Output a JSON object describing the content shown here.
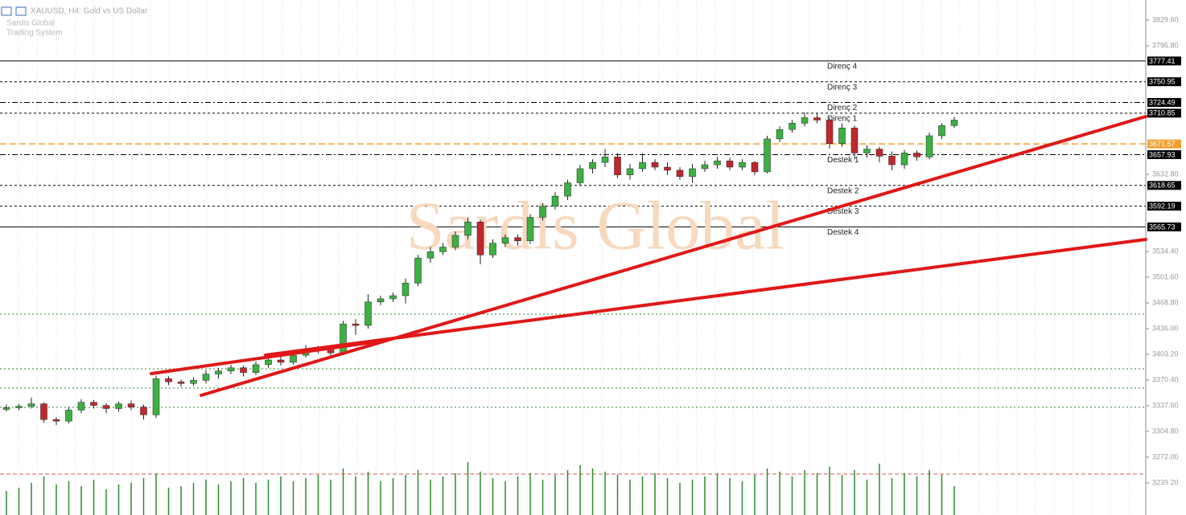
{
  "chart_data": {
    "type": "candlestick",
    "title": "XAUUSD, H4: Gold vs US Dollar",
    "subtitle": [
      "Sardis Global",
      "Trading System"
    ],
    "watermark": "Sardis Global",
    "up_color": "#3cb043",
    "down_color": "#c0282d",
    "volume_color": "#2e8b2e",
    "ylim": [
      3198.2,
      3855.2
    ],
    "yticks": [
      {
        "value": 3829.6,
        "label": "3829.60"
      },
      {
        "value": 3796.8,
        "label": "3796.80"
      },
      {
        "value": 3632.8,
        "label": "3632.80"
      },
      {
        "value": 3534.4,
        "label": "3534.40"
      },
      {
        "value": 3501.6,
        "label": "3501.60"
      },
      {
        "value": 3468.8,
        "label": "3468.80"
      },
      {
        "value": 3436,
        "label": "3436.00"
      },
      {
        "value": 3403.2,
        "label": "3403.20"
      },
      {
        "value": 3370.4,
        "label": "3370.40"
      },
      {
        "value": 3337.6,
        "label": "3337.60"
      },
      {
        "value": 3304.8,
        "label": "3304.80"
      },
      {
        "value": 3272,
        "label": "3272.00"
      },
      {
        "value": 3239.2,
        "label": "3239.20"
      }
    ],
    "levels": [
      {
        "label": "Direnç 4",
        "value": 3777.41,
        "style": "solid",
        "color": "#000000"
      },
      {
        "label": "Direnç 3",
        "value": 3750.95,
        "style": "dashed",
        "color": "#000000"
      },
      {
        "label": "Direnç 2",
        "value": 3724.49,
        "style": "dashdot",
        "color": "#000000"
      },
      {
        "label": "Direnç 1",
        "value": 3710.85,
        "style": "dashed",
        "color": "#000000"
      },
      {
        "value": 3671.57,
        "style": "longdash",
        "color": "#f0a030"
      },
      {
        "label": "Destek 1",
        "value": 3657.93,
        "style": "dashdot",
        "color": "#000000"
      },
      {
        "label": "Destek 2",
        "value": 3618.65,
        "style": "dashed",
        "color": "#000000"
      },
      {
        "label": "Destek 3",
        "value": 3592.19,
        "style": "dashed",
        "color": "#000000"
      },
      {
        "label": "Destek 4",
        "value": 3565.73,
        "style": "solid",
        "color": "#000000"
      }
    ],
    "open": [
      3333,
      3335,
      3337,
      3340,
      3320,
      3318,
      3332,
      3342,
      3338,
      3334,
      3340,
      3336,
      3326,
      3372,
      3368,
      3366,
      3370,
      3378,
      3382,
      3386,
      3380,
      3390,
      3396,
      3393,
      3402,
      3408,
      3410,
      3405,
      3442,
      3440,
      3470,
      3474,
      3478,
      3494,
      3526,
      3534,
      3540,
      3555,
      3572,
      3530,
      3545,
      3552,
      3548,
      3578,
      3592,
      3605,
      3622,
      3640,
      3648,
      3655,
      3632,
      3640,
      3648,
      3642,
      3638,
      3630,
      3640,
      3645,
      3650,
      3642,
      3648,
      3636,
      3678,
      3690,
      3698,
      3705,
      3702,
      3672,
      3692,
      3660,
      3665,
      3656,
      3645,
      3660,
      3655,
      3682,
      3695
    ],
    "high": [
      3339,
      3340,
      3348,
      3342,
      3323,
      3336,
      3346,
      3345,
      3341,
      3343,
      3344,
      3339,
      3376,
      3375,
      3371,
      3374,
      3383,
      3386,
      3390,
      3389,
      3394,
      3400,
      3402,
      3408,
      3415,
      3414,
      3413,
      3446,
      3448,
      3480,
      3478,
      3482,
      3500,
      3530,
      3540,
      3545,
      3560,
      3578,
      3575,
      3550,
      3556,
      3556,
      3582,
      3596,
      3610,
      3626,
      3645,
      3652,
      3665,
      3660,
      3646,
      3660,
      3652,
      3648,
      3642,
      3646,
      3650,
      3655,
      3654,
      3652,
      3650,
      3682,
      3694,
      3702,
      3712,
      3710,
      3706,
      3698,
      3695,
      3670,
      3668,
      3662,
      3664,
      3663,
      3686,
      3698,
      3706
    ],
    "low": [
      3330,
      3332,
      3334,
      3316,
      3313,
      3315,
      3328,
      3334,
      3328,
      3330,
      3332,
      3320,
      3322,
      3364,
      3362,
      3363,
      3366,
      3372,
      3378,
      3375,
      3377,
      3386,
      3389,
      3390,
      3399,
      3404,
      3400,
      3402,
      3428,
      3436,
      3466,
      3470,
      3468,
      3490,
      3520,
      3530,
      3536,
      3550,
      3518,
      3526,
      3540,
      3542,
      3544,
      3574,
      3588,
      3600,
      3618,
      3634,
      3642,
      3628,
      3626,
      3636,
      3638,
      3632,
      3626,
      3622,
      3636,
      3640,
      3638,
      3638,
      3632,
      3634,
      3674,
      3686,
      3694,
      3698,
      3666,
      3668,
      3652,
      3654,
      3648,
      3638,
      3640,
      3650,
      3652,
      3678,
      3692
    ],
    "close": [
      3335,
      3337,
      3340,
      3320,
      3318,
      3332,
      3342,
      3338,
      3334,
      3340,
      3336,
      3326,
      3372,
      3368,
      3366,
      3370,
      3378,
      3382,
      3386,
      3380,
      3390,
      3396,
      3393,
      3402,
      3408,
      3410,
      3405,
      3442,
      3440,
      3470,
      3474,
      3478,
      3494,
      3526,
      3534,
      3540,
      3555,
      3572,
      3530,
      3545,
      3552,
      3548,
      3578,
      3592,
      3605,
      3622,
      3640,
      3648,
      3655,
      3632,
      3640,
      3648,
      3642,
      3638,
      3630,
      3640,
      3645,
      3650,
      3642,
      3648,
      3636,
      3678,
      3690,
      3698,
      3705,
      3702,
      3672,
      3692,
      3660,
      3665,
      3656,
      3645,
      3660,
      3655,
      3682,
      3695,
      3702
    ],
    "volume": [
      30,
      34,
      40,
      48,
      38,
      42,
      36,
      44,
      32,
      38,
      40,
      46,
      52,
      34,
      36,
      40,
      44,
      38,
      42,
      46,
      40,
      44,
      48,
      42,
      46,
      50,
      44,
      58,
      48,
      54,
      42,
      46,
      50,
      56,
      44,
      48,
      52,
      66,
      54,
      46,
      42,
      48,
      52,
      44,
      50,
      56,
      62,
      58,
      54,
      50,
      44,
      48,
      52,
      46,
      40,
      44,
      48,
      52,
      46,
      42,
      50,
      58,
      54,
      48,
      56,
      52,
      60,
      50,
      56,
      44,
      64,
      46,
      52,
      48,
      56,
      50,
      36
    ]
  }
}
